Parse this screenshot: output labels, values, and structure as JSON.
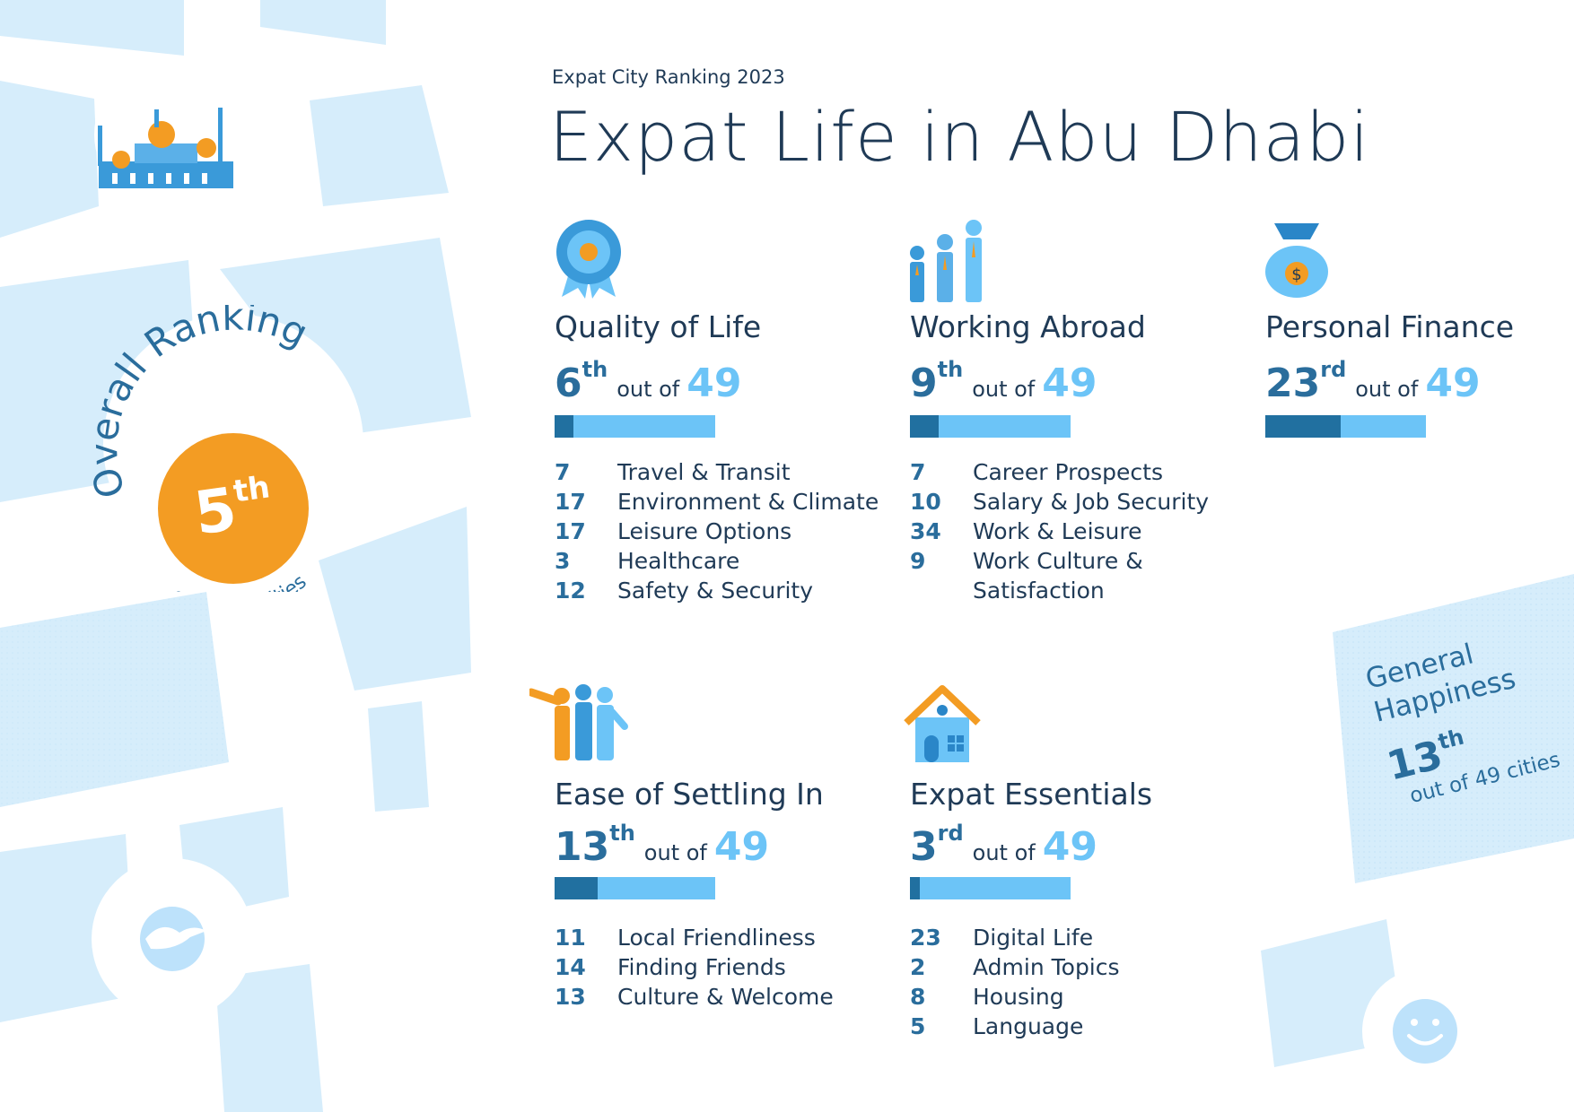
{
  "header": {
    "pretitle": "Expat City Ranking 2023",
    "title": "Expat Life in Abu Dhabi"
  },
  "overall": {
    "label": "Overall Ranking",
    "rank": "5",
    "suffix": "th",
    "subtitle": "out of 49 cities"
  },
  "general_happiness": {
    "label_line1": "General",
    "label_line2": "Happiness",
    "rank": "13",
    "suffix": "th",
    "subtitle": "out of 49 cities"
  },
  "categories": {
    "quality": {
      "title": "Quality of Life",
      "rank": "6",
      "suffix": "th",
      "of": "out of",
      "total": "49",
      "fraction": 0.12,
      "items": [
        {
          "n": "7",
          "label": "Travel & Transit"
        },
        {
          "n": "17",
          "label": "Environment & Climate"
        },
        {
          "n": "17",
          "label": "Leisure Options"
        },
        {
          "n": "3",
          "label": "Healthcare"
        },
        {
          "n": "12",
          "label": "Safety & Security"
        }
      ]
    },
    "working": {
      "title": "Working Abroad",
      "rank": "9",
      "suffix": "th",
      "of": "out of",
      "total": "49",
      "fraction": 0.18,
      "items": [
        {
          "n": "7",
          "label": "Career Prospects"
        },
        {
          "n": "10",
          "label": "Salary & Job Security"
        },
        {
          "n": "34",
          "label": "Work & Leisure"
        },
        {
          "n": "9",
          "label": "Work Culture &"
        },
        {
          "n": "",
          "label": "Satisfaction"
        }
      ]
    },
    "finance": {
      "title": "Personal Finance",
      "rank": "23",
      "suffix": "rd",
      "of": "out of",
      "total": "49",
      "fraction": 0.47,
      "items": []
    },
    "settling": {
      "title": "Ease of Settling In",
      "rank": "13",
      "suffix": "th",
      "of": "out of",
      "total": "49",
      "fraction": 0.27,
      "items": [
        {
          "n": "11",
          "label": "Local Friendliness"
        },
        {
          "n": "14",
          "label": "Finding Friends"
        },
        {
          "n": "13",
          "label": "Culture & Welcome"
        }
      ]
    },
    "essentials": {
      "title": "Expat Essentials",
      "rank": "3",
      "suffix": "rd",
      "of": "out of",
      "total": "49",
      "fraction": 0.06,
      "items": [
        {
          "n": "23",
          "label": "Digital Life"
        },
        {
          "n": "2",
          "label": "Admin Topics"
        },
        {
          "n": "8",
          "label": "Housing"
        },
        {
          "n": "5",
          "label": "Language"
        }
      ]
    }
  },
  "colors": {
    "map_block": "#d6edfb",
    "accent_orange": "#f39c23",
    "bar_light": "#6cc4f7",
    "bar_dark": "#2170a0",
    "text_dark": "#1f3a56"
  }
}
